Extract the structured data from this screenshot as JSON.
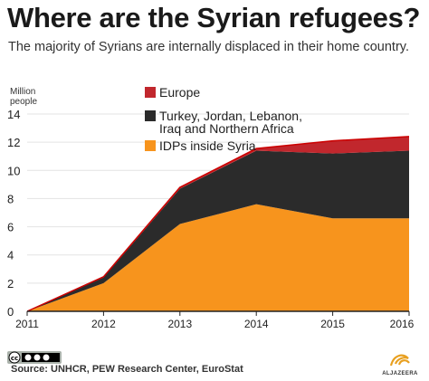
{
  "title": "Where are the Syrian refugees?",
  "subtitle": "The majority of Syrians are internally displaced in their home country.",
  "source": "Source: UNHCR, PEW Research Center, EuroStat",
  "logo_text": "ALJAZEERA",
  "colors": {
    "europe": "#c1272d",
    "neighbours": "#2b2b2b",
    "idps": "#f7941d",
    "line": "#cc0000"
  },
  "chart_data": {
    "type": "area",
    "stacked": true,
    "x": [
      2011,
      2012,
      2013,
      2014,
      2015,
      2016
    ],
    "ylabel": "Million people",
    "ylim": [
      0,
      14
    ],
    "yticks": [
      0,
      2,
      4,
      6,
      8,
      10,
      12,
      14
    ],
    "legend_position": "top-right",
    "series": [
      {
        "name": "IDPs inside Syria",
        "values": [
          0,
          2.0,
          6.2,
          7.6,
          6.6,
          6.6
        ]
      },
      {
        "name": "Turkey, Jordan, Lebanon, Iraq and Northern Africa",
        "values": [
          0,
          0.4,
          2.5,
          3.8,
          4.6,
          4.8
        ]
      },
      {
        "name": "Europe",
        "values": [
          0,
          0.05,
          0.1,
          0.15,
          0.9,
          1.0
        ]
      }
    ]
  }
}
